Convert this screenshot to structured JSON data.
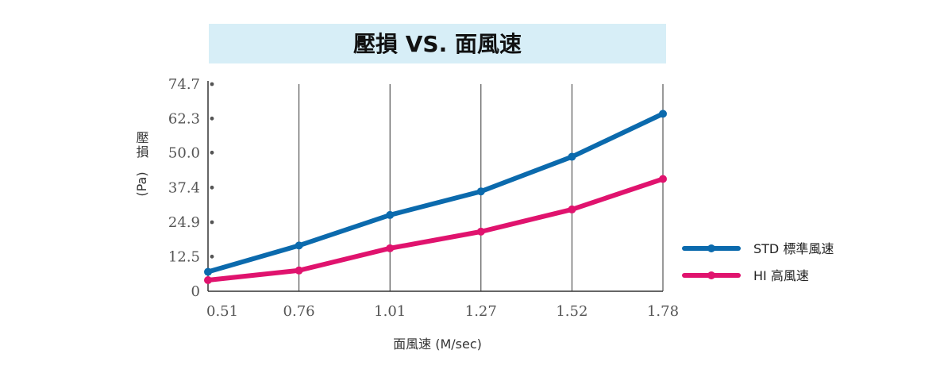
{
  "chart_data": {
    "type": "line",
    "title": "壓損 VS. 面風速",
    "xlabel": "面風速 (M/sec)",
    "ylabel_main": "壓損",
    "ylabel_unit": "(Pa)",
    "categories": [
      "0.51",
      "0.76",
      "1.01",
      "1.27",
      "1.52",
      "1.78"
    ],
    "y_ticks": [
      "0",
      "12.5",
      "24.9",
      "37.4",
      "50.0",
      "62.3",
      "74.7"
    ],
    "y_tick_values": [
      0,
      12.5,
      24.9,
      37.4,
      50.0,
      62.3,
      74.7
    ],
    "ylim": [
      0,
      74.7
    ],
    "grid": "vertical",
    "legend_position": "right",
    "series": [
      {
        "name": "STD 標準風速",
        "color": "#0b6aad",
        "values": [
          7.0,
          16.5,
          27.5,
          36.0,
          48.5,
          64.0
        ]
      },
      {
        "name": "HI 高風速",
        "color": "#e0136e",
        "values": [
          4.0,
          7.5,
          15.5,
          21.5,
          29.5,
          40.5
        ]
      }
    ]
  },
  "colors": {
    "title_background": "#d7eef7",
    "axis": "#333333",
    "tick_dot": "#555555"
  }
}
